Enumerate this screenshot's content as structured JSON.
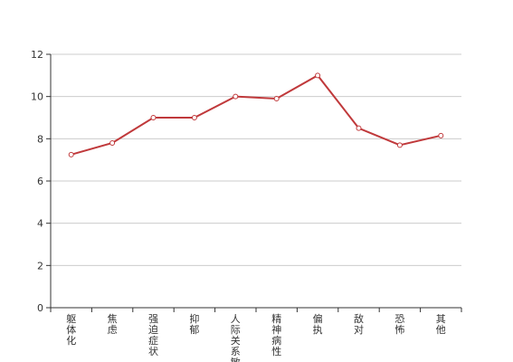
{
  "chart_data": {
    "type": "line",
    "title": "",
    "xlabel": "",
    "ylabel": "",
    "categories": [
      "躯体化",
      "焦虑",
      "强迫症状",
      "抑郁",
      "人际关系敏感",
      "精神病性",
      "偏执",
      "敌对",
      "恐怖",
      "其他"
    ],
    "series": [
      {
        "values": [
          7.25,
          7.8,
          9.0,
          9.0,
          10.0,
          9.9,
          11.0,
          8.5,
          7.7,
          8.15
        ]
      }
    ],
    "ylim": [
      0,
      12
    ],
    "yticks": [
      "0",
      "2",
      "4",
      "6",
      "8",
      "10",
      "12"
    ],
    "grid": true,
    "legend": "none",
    "colors": {
      "line": "#c0393b"
    }
  }
}
